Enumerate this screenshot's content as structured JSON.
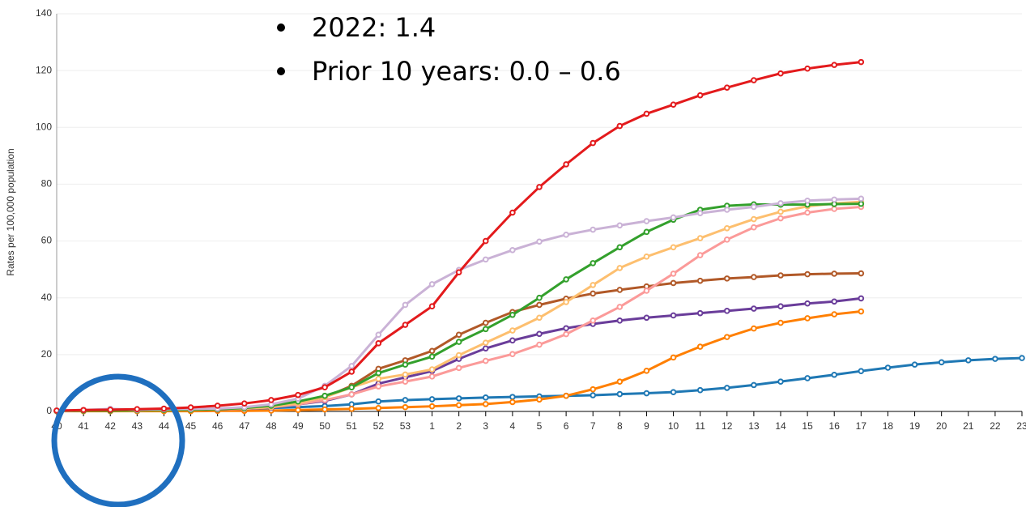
{
  "chart_data": {
    "type": "line",
    "y_label": "Rates per 100,000 population",
    "annotations": [
      "2022:  1.4",
      "Prior 10 years: 0.0 – 0.6"
    ],
    "categories": [
      "40",
      "41",
      "42",
      "43",
      "44",
      "45",
      "46",
      "47",
      "48",
      "49",
      "50",
      "51",
      "52",
      "53",
      "1",
      "2",
      "3",
      "4",
      "5",
      "6",
      "7",
      "8",
      "9",
      "10",
      "11",
      "12",
      "13",
      "14",
      "15",
      "16",
      "17",
      "18",
      "19",
      "20",
      "21",
      "22",
      "23"
    ],
    "ylim": [
      0,
      140
    ],
    "yticks": [
      0,
      20,
      40,
      60,
      80,
      100,
      120,
      140
    ],
    "grid": true,
    "series": [
      {
        "color": "#1f78b4",
        "values": [
          0.2,
          0.3,
          0.3,
          0.4,
          0.5,
          0.6,
          0.7,
          0.9,
          1.2,
          1.5,
          1.9,
          2.5,
          3.5,
          4,
          4.3,
          4.6,
          4.9,
          5.1,
          5.3,
          5.5,
          5.7,
          6.1,
          6.4,
          6.8,
          7.5,
          8.3,
          9.3,
          10.5,
          11.7,
          12.9,
          14.2,
          15.4,
          16.5,
          17.3,
          18,
          18.5,
          18.8
        ]
      },
      {
        "color": "#ff7f00",
        "values": [
          0.1,
          0.1,
          0.1,
          0.1,
          0.1,
          0.1,
          0.2,
          0.2,
          0.3,
          0.5,
          0.7,
          0.9,
          1.2,
          1.5,
          1.8,
          2.2,
          2.6,
          3.3,
          4.2,
          5.5,
          7.8,
          10.5,
          14.3,
          19,
          22.8,
          26.2,
          29.2,
          31.2,
          32.8,
          34.2,
          35.2,
          null,
          null,
          null,
          null,
          null,
          null
        ]
      },
      {
        "color": "#6a3d9a",
        "values": [
          0.2,
          0.3,
          0.3,
          0.4,
          0.5,
          0.6,
          0.7,
          0.9,
          1.3,
          2.5,
          3.7,
          6,
          9.8,
          12,
          14.2,
          18.5,
          22.2,
          25,
          27.3,
          29.3,
          30.8,
          32,
          33,
          33.8,
          34.6,
          35.4,
          36.2,
          37,
          38,
          38.7,
          39.8,
          null,
          null,
          null,
          null,
          null,
          null
        ]
      },
      {
        "color": "#b15928",
        "values": [
          0.2,
          0.3,
          0.3,
          0.4,
          0.5,
          0.6,
          0.8,
          1.1,
          1.8,
          3,
          5,
          9,
          15,
          18,
          21.3,
          27,
          31.2,
          35,
          37.5,
          39.7,
          41.5,
          42.8,
          44,
          45.2,
          46,
          46.8,
          47.3,
          47.9,
          48.3,
          48.5,
          48.6,
          null,
          null,
          null,
          null,
          null,
          null
        ]
      },
      {
        "color": "#fb9a99",
        "values": [
          0.2,
          0.3,
          0.3,
          0.4,
          0.5,
          0.6,
          0.8,
          1,
          1.5,
          2.5,
          4,
          6,
          8.8,
          10.5,
          12.3,
          15.3,
          17.8,
          20.2,
          23.5,
          27.2,
          32,
          36.8,
          42.5,
          48.5,
          55,
          60.5,
          64.8,
          68,
          70,
          71.3,
          72,
          null,
          null,
          null,
          null,
          null,
          null
        ]
      },
      {
        "color": "#fdbf6f",
        "values": [
          0.2,
          0.3,
          0.3,
          0.4,
          0.5,
          0.6,
          0.8,
          1,
          1.5,
          3,
          5,
          8.5,
          11.5,
          13,
          14.8,
          19.8,
          24.2,
          28.5,
          33,
          38.5,
          44.5,
          50.5,
          54.5,
          57.8,
          61,
          64.5,
          67.7,
          70.3,
          72.2,
          73.2,
          73.8,
          null,
          null,
          null,
          null,
          null,
          null
        ]
      },
      {
        "color": "#33a02c",
        "values": [
          0.2,
          0.3,
          0.3,
          0.4,
          0.5,
          0.6,
          0.8,
          1.2,
          2,
          3.5,
          5.5,
          8.5,
          13.5,
          16.5,
          19.3,
          24.5,
          29,
          34,
          40,
          46.5,
          52.2,
          57.8,
          63.2,
          67.5,
          71,
          72.4,
          72.9,
          72.8,
          72.8,
          73,
          73.1,
          null,
          null,
          null,
          null,
          null,
          null
        ]
      },
      {
        "color": "#cab2d6",
        "values": [
          0.3,
          0.5,
          0.9,
          0.6,
          0.8,
          0.9,
          1,
          1.5,
          2.5,
          4.5,
          9,
          16,
          27,
          37.5,
          44.8,
          49.8,
          53.5,
          56.8,
          59.8,
          62.2,
          64,
          65.5,
          67,
          68.3,
          69.8,
          71,
          72,
          73.3,
          74.2,
          74.6,
          74.9,
          null,
          null,
          null,
          null,
          null,
          null
        ]
      },
      {
        "color": "#e31a1c",
        "values": [
          0.3,
          0.5,
          0.6,
          0.8,
          1,
          1.4,
          2,
          2.8,
          4,
          5.8,
          8.5,
          14,
          24,
          30.5,
          37,
          49,
          60,
          70,
          79,
          87,
          94.5,
          100.5,
          104.8,
          108,
          111.3,
          114,
          116.6,
          119,
          120.7,
          122,
          123,
          null,
          null,
          null,
          null,
          null,
          null
        ]
      }
    ]
  }
}
